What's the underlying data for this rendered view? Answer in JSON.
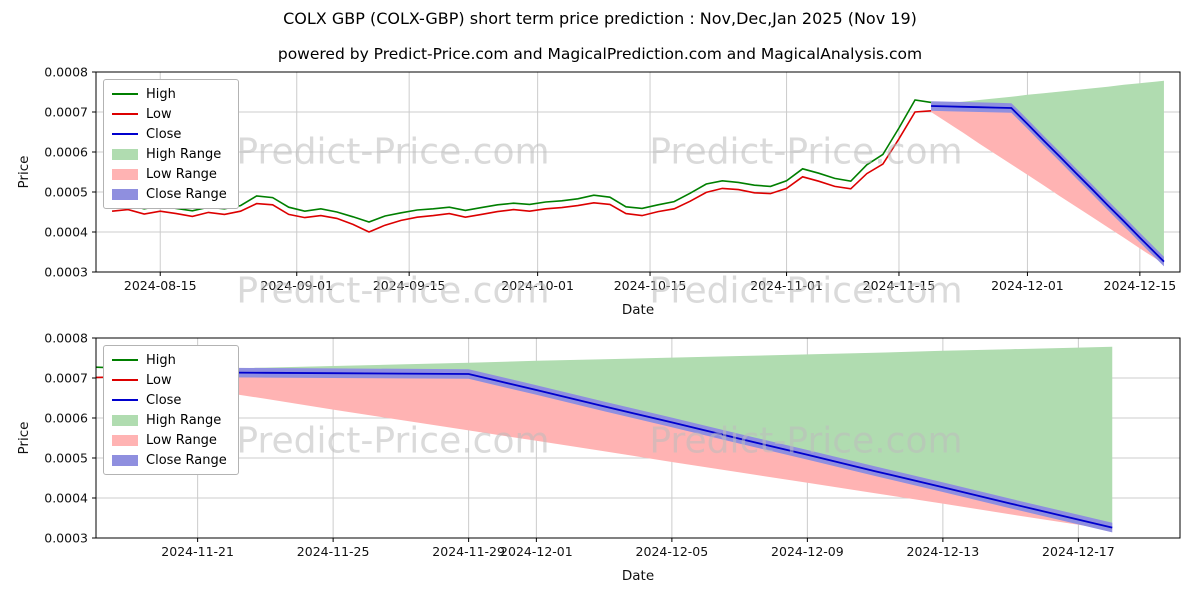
{
  "header": {
    "title": "COLX GBP (COLX-GBP) short term price prediction : Nov,Dec,Jan 2025 (Nov 19)",
    "subtitle": "powered by Predict-Price.com and MagicalPrediction.com and MagicalAnalysis.com"
  },
  "watermark": "Predict-Price.com",
  "chart_data": {
    "type": "line",
    "colors": {
      "high": "#007f00",
      "low": "#dc0000",
      "close": "#0000cd",
      "high_range": "#b0dcb0",
      "low_range": "#ffb3b3",
      "close_range": "#8f8fdf",
      "grid": "#cccccc",
      "axes": "#000000",
      "watermark": "#bdbdbd"
    },
    "legend": [
      {
        "label": "High",
        "swatch": "line",
        "color": "#007f00"
      },
      {
        "label": "Low",
        "swatch": "line",
        "color": "#dc0000"
      },
      {
        "label": "Close",
        "swatch": "line",
        "color": "#0000cd"
      },
      {
        "label": "High Range",
        "swatch": "patch",
        "color": "#b0dcb0"
      },
      {
        "label": "Low Range",
        "swatch": "patch",
        "color": "#ffb3b3"
      },
      {
        "label": "Close Range",
        "swatch": "patch",
        "color": "#8f8fdf"
      }
    ],
    "history": {
      "dates": [
        "2024-08-09",
        "2024-08-11",
        "2024-08-13",
        "2024-08-15",
        "2024-08-17",
        "2024-08-19",
        "2024-08-21",
        "2024-08-23",
        "2024-08-25",
        "2024-08-27",
        "2024-08-29",
        "2024-08-31",
        "2024-09-02",
        "2024-09-04",
        "2024-09-06",
        "2024-09-08",
        "2024-09-10",
        "2024-09-12",
        "2024-09-14",
        "2024-09-16",
        "2024-09-18",
        "2024-09-20",
        "2024-09-22",
        "2024-09-24",
        "2024-09-26",
        "2024-09-28",
        "2024-09-30",
        "2024-10-02",
        "2024-10-04",
        "2024-10-06",
        "2024-10-08",
        "2024-10-10",
        "2024-10-12",
        "2024-10-14",
        "2024-10-16",
        "2024-10-18",
        "2024-10-20",
        "2024-10-22",
        "2024-10-24",
        "2024-10-26",
        "2024-10-28",
        "2024-10-30",
        "2024-11-01",
        "2024-11-03",
        "2024-11-05",
        "2024-11-07",
        "2024-11-09",
        "2024-11-11",
        "2024-11-13",
        "2024-11-15",
        "2024-11-17",
        "2024-11-19"
      ],
      "high": [
        0.000465,
        0.000468,
        0.000458,
        0.000465,
        0.000459,
        0.000453,
        0.000462,
        0.000458,
        0.000466,
        0.00049,
        0.000486,
        0.000462,
        0.000452,
        0.000458,
        0.00045,
        0.000438,
        0.000425,
        0.00044,
        0.000448,
        0.000455,
        0.000458,
        0.000462,
        0.000454,
        0.000461,
        0.000468,
        0.000472,
        0.000469,
        0.000475,
        0.000478,
        0.000483,
        0.000492,
        0.000487,
        0.000463,
        0.000459,
        0.000468,
        0.000476,
        0.000497,
        0.00052,
        0.000528,
        0.000524,
        0.000517,
        0.000514,
        0.000528,
        0.000558,
        0.000547,
        0.000534,
        0.000527,
        0.000568,
        0.000594,
        0.00066,
        0.00073,
        0.000724
      ],
      "low": [
        0.000452,
        0.000456,
        0.000445,
        0.000452,
        0.000446,
        0.000439,
        0.000449,
        0.000444,
        0.000452,
        0.000471,
        0.000468,
        0.000444,
        0.000436,
        0.000441,
        0.000434,
        0.000419,
        0.0004,
        0.000417,
        0.000429,
        0.000437,
        0.000441,
        0.000446,
        0.000437,
        0.000444,
        0.000451,
        0.000456,
        0.000452,
        0.000458,
        0.000461,
        0.000466,
        0.000473,
        0.000469,
        0.000446,
        0.000441,
        0.000451,
        0.000458,
        0.000477,
        0.000499,
        0.000509,
        0.000506,
        0.000498,
        0.000496,
        0.000509,
        0.000538,
        0.000527,
        0.000514,
        0.000508,
        0.000546,
        0.00057,
        0.000633,
        0.0007,
        0.000703
      ]
    },
    "prediction": {
      "dates": [
        "2024-11-19",
        "2024-11-21",
        "2024-11-23",
        "2024-11-25",
        "2024-11-27",
        "2024-11-29",
        "2024-12-01",
        "2024-12-03",
        "2024-12-05",
        "2024-12-07",
        "2024-12-09",
        "2024-12-11",
        "2024-12-13",
        "2024-12-15",
        "2024-12-17",
        "2024-12-18"
      ],
      "close": [
        0.000715,
        0.000714,
        0.000713,
        0.000712,
        0.000711,
        0.00071,
        0.00067,
        0.000629,
        0.000589,
        0.000548,
        0.000508,
        0.000467,
        0.000427,
        0.000386,
        0.000346,
        0.000326
      ],
      "high_upper": [
        0.000718,
        0.000722,
        0.000726,
        0.00073,
        0.000734,
        0.000738,
        0.000743,
        0.000747,
        0.000751,
        0.000755,
        0.000759,
        0.000763,
        0.000768,
        0.000772,
        0.000776,
        0.000778
      ],
      "low_lower": [
        0.0007,
        0.000674,
        0.000648,
        0.000621,
        0.000595,
        0.000569,
        0.000543,
        0.000517,
        0.00049,
        0.000464,
        0.000438,
        0.000412,
        0.000386,
        0.000359,
        0.000333,
        0.00032
      ],
      "close_range_halfwidth": 1.2e-05
    },
    "charts": [
      {
        "id": "main",
        "xlabel": "Date",
        "ylabel": "Price",
        "ylim": [
          0.0003,
          0.0008
        ],
        "yticks": [
          0.0003,
          0.0004,
          0.0005,
          0.0006,
          0.0007,
          0.0008
        ],
        "xlim": [
          "2024-08-07",
          "2024-12-20"
        ],
        "xticks": [
          "2024-08-15",
          "2024-09-01",
          "2024-09-15",
          "2024-10-01",
          "2024-10-15",
          "2024-11-01",
          "2024-11-15",
          "2024-12-01",
          "2024-12-15"
        ]
      },
      {
        "id": "zoom",
        "xlabel": "Date",
        "ylabel": "Price",
        "ylim": [
          0.0003,
          0.0008
        ],
        "yticks": [
          0.0003,
          0.0004,
          0.0005,
          0.0006,
          0.0007,
          0.0008
        ],
        "xlim": [
          "2024-11-18",
          "2024-12-20"
        ],
        "xticks": [
          "2024-11-21",
          "2024-11-25",
          "2024-11-29",
          "2024-12-01",
          "2024-12-05",
          "2024-12-09",
          "2024-12-13",
          "2024-12-17"
        ]
      }
    ]
  }
}
